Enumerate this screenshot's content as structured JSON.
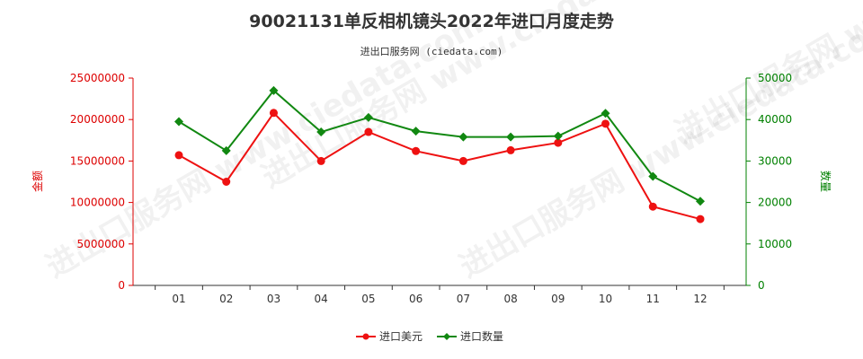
{
  "chart_data": {
    "type": "line",
    "title": "90021131单反相机镜头2022年进口月度走势",
    "subtitle": "进出口服务网 (ciedata.com)",
    "categories": [
      "01",
      "02",
      "03",
      "04",
      "05",
      "06",
      "07",
      "08",
      "09",
      "10",
      "11",
      "12"
    ],
    "y_left": {
      "label": "金额",
      "ylim": [
        0,
        25000000
      ],
      "ticks": [
        0,
        5000000,
        10000000,
        15000000,
        20000000,
        25000000
      ],
      "color": "#dd0000"
    },
    "y_right": {
      "label": "数量",
      "ylim": [
        0,
        50000
      ],
      "ticks": [
        0,
        10000,
        20000,
        30000,
        40000,
        50000
      ],
      "color": "#008000"
    },
    "series": [
      {
        "name": "进口美元",
        "axis": "left",
        "color": "#ee1111",
        "marker": "circle",
        "values": [
          15700000,
          12500000,
          20800000,
          15000000,
          18500000,
          16200000,
          15000000,
          16300000,
          17200000,
          19500000,
          9500000,
          8000000
        ]
      },
      {
        "name": "进口数量",
        "axis": "right",
        "color": "#118811",
        "marker": "diamond",
        "values": [
          39500,
          32500,
          47000,
          37000,
          40500,
          37200,
          35800,
          35800,
          36000,
          41500,
          26300,
          20300
        ]
      }
    ],
    "legend": "bottom-center",
    "grid": false
  },
  "watermark_text": "进出口服务网 www.ciedata.com"
}
